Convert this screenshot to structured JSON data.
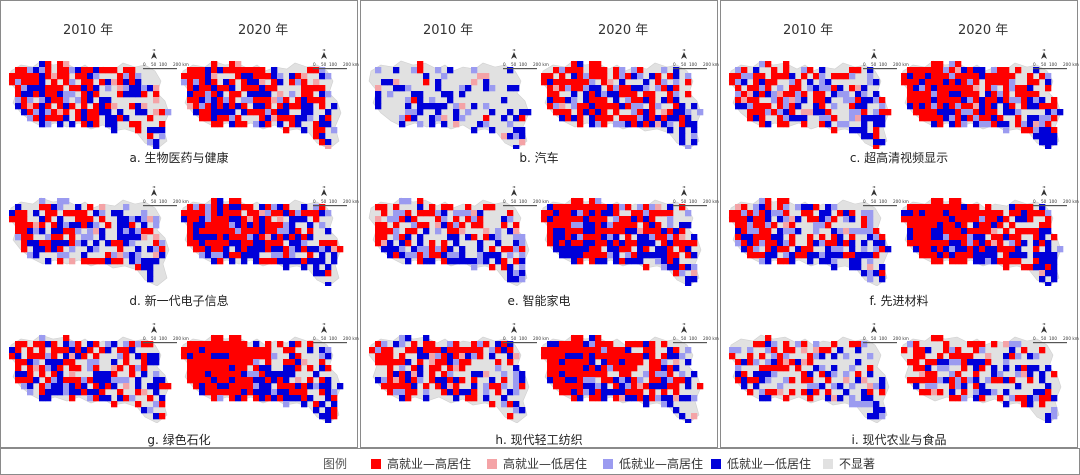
{
  "years": [
    "2010 年",
    "2020 年"
  ],
  "scale": {
    "ticks": [
      "0",
      "50",
      "100",
      "200 km"
    ],
    "north": "N"
  },
  "panels": [
    {
      "label": "a. 生物医药与健康",
      "left": {
        "hh": 0.35,
        "hl": 0.04,
        "lh": 0.08,
        "ll": 0.25
      },
      "right": {
        "hh": 0.4,
        "hl": 0.04,
        "lh": 0.08,
        "ll": 0.25
      }
    },
    {
      "label": "b. 汽车",
      "left": {
        "hh": 0.02,
        "hl": 0.03,
        "lh": 0.12,
        "ll": 0.2
      },
      "right": {
        "hh": 0.3,
        "hl": 0.03,
        "lh": 0.12,
        "ll": 0.25
      }
    },
    {
      "label": "c. 超高清视频显示",
      "left": {
        "hh": 0.3,
        "hl": 0.02,
        "lh": 0.15,
        "ll": 0.25
      },
      "right": {
        "hh": 0.45,
        "hl": 0.02,
        "lh": 0.15,
        "ll": 0.25
      }
    },
    {
      "label": "d. 新一代电子信息",
      "left": {
        "hh": 0.25,
        "hl": 0.03,
        "lh": 0.12,
        "ll": 0.25
      },
      "right": {
        "hh": 0.45,
        "hl": 0.02,
        "lh": 0.1,
        "ll": 0.28
      }
    },
    {
      "label": "e. 智能家电",
      "left": {
        "hh": 0.25,
        "hl": 0.02,
        "lh": 0.15,
        "ll": 0.22
      },
      "right": {
        "hh": 0.45,
        "hl": 0.02,
        "lh": 0.1,
        "ll": 0.28
      }
    },
    {
      "label": "f. 先进材料",
      "left": {
        "hh": 0.3,
        "hl": 0.02,
        "lh": 0.15,
        "ll": 0.22
      },
      "right": {
        "hh": 0.48,
        "hl": 0.02,
        "lh": 0.08,
        "ll": 0.28
      }
    },
    {
      "label": "g. 绿色石化",
      "left": {
        "hh": 0.3,
        "hl": 0.02,
        "lh": 0.12,
        "ll": 0.25
      },
      "right": {
        "hh": 0.5,
        "hl": 0.02,
        "lh": 0.08,
        "ll": 0.3
      }
    },
    {
      "label": "h. 现代轻工纺织",
      "left": {
        "hh": 0.3,
        "hl": 0.03,
        "lh": 0.12,
        "ll": 0.22
      },
      "right": {
        "hh": 0.5,
        "hl": 0.02,
        "lh": 0.08,
        "ll": 0.28
      }
    },
    {
      "label": "i. 现代农业与食品",
      "left": {
        "hh": 0.15,
        "hl": 0.03,
        "lh": 0.15,
        "ll": 0.15
      },
      "right": {
        "hh": 0.25,
        "hl": 0.03,
        "lh": 0.12,
        "ll": 0.2
      }
    }
  ],
  "legend": {
    "title": "图例",
    "items": [
      {
        "key": "hh",
        "label": "高就业—高居住",
        "color": "#ff0000"
      },
      {
        "key": "hl",
        "label": "高就业—低居住",
        "color": "#f4a3a6"
      },
      {
        "key": "lh",
        "label": "低就业—高居住",
        "color": "#9b9bf0"
      },
      {
        "key": "ll",
        "label": "低就业—低居住",
        "color": "#0000d9"
      },
      {
        "key": "ns",
        "label": "不显著",
        "color": "#e1e1e1"
      }
    ]
  }
}
